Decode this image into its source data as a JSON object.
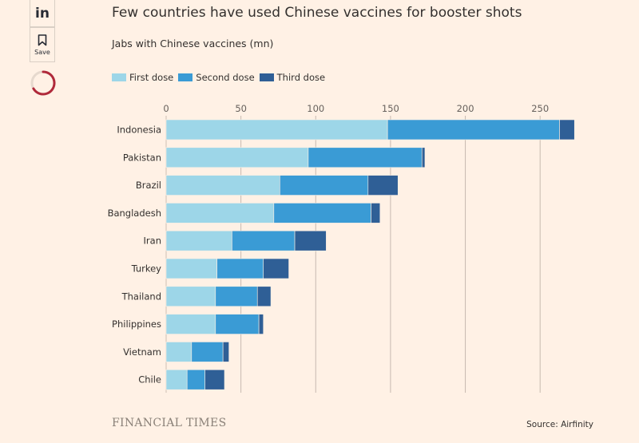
{
  "share": {
    "linkedin_label": "in",
    "save_label": "Save",
    "linkedin_icon": "linkedin-icon",
    "save_icon": "bookmark-icon",
    "spinner_icon": "loading-spinner-icon",
    "spinner_color": "#b0293a"
  },
  "chart_data": {
    "type": "bar",
    "orientation": "horizontal",
    "stacked": true,
    "title": "Few countries have used Chinese vaccines for booster shots",
    "subtitle": "Jabs with Chinese vaccines (mn)",
    "categories": [
      "Indonesia",
      "Pakistan",
      "Brazil",
      "Bangladesh",
      "Iran",
      "Turkey",
      "Thailand",
      "Philippines",
      "Vietnam",
      "Chile"
    ],
    "series": [
      {
        "name": "First dose",
        "color": "#9dd6e8",
        "values": [
          148,
          95,
          76,
          72,
          44,
          34,
          33,
          33,
          17,
          14
        ]
      },
      {
        "name": "Second dose",
        "color": "#3a9bd5",
        "values": [
          115,
          76,
          59,
          65,
          42,
          31,
          28,
          29,
          21,
          12
        ]
      },
      {
        "name": "Third dose",
        "color": "#2f5f96",
        "values": [
          10,
          2,
          20,
          6,
          21,
          17,
          9,
          3,
          4,
          13
        ]
      }
    ],
    "xlim": [
      0,
      275
    ],
    "xticks": [
      0,
      50,
      100,
      150,
      200,
      250
    ],
    "grid": true,
    "legend_position": "top-left",
    "source": "Source: Airfinity",
    "brand": "FINANCIAL TIMES"
  }
}
